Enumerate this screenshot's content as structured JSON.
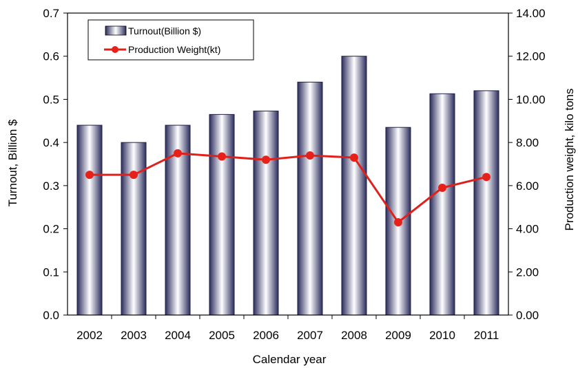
{
  "chart_data": {
    "type": "bar",
    "categories": [
      "2002",
      "2003",
      "2004",
      "2005",
      "2006",
      "2007",
      "2008",
      "2009",
      "2010",
      "2011"
    ],
    "series": [
      {
        "name": "Turnout(Billion $)",
        "type": "bar",
        "axis": "left",
        "values": [
          0.44,
          0.4,
          0.44,
          0.465,
          0.473,
          0.54,
          0.6,
          0.435,
          0.513,
          0.52
        ]
      },
      {
        "name": "Production Weight(kt)",
        "type": "line",
        "axis": "right",
        "values": [
          6.5,
          6.5,
          7.5,
          7.35,
          7.2,
          7.4,
          7.3,
          4.3,
          5.9,
          6.4
        ]
      }
    ],
    "xlabel": "Calendar year",
    "ylabel": "Turnout, Billion $",
    "y2label": "Production weight, kilo tons",
    "ylim": [
      0,
      0.7
    ],
    "y2lim": [
      0,
      14
    ],
    "yticks": [
      "0.0",
      "0.1",
      "0.2",
      "0.3",
      "0.4",
      "0.5",
      "0.6",
      "0.7"
    ],
    "y2ticks": [
      "0.00",
      "2.00",
      "4.00",
      "6.00",
      "8.00",
      "10.00",
      "12.00",
      "14.00"
    ],
    "grid": false,
    "legend_position": "top-left"
  },
  "colors": {
    "bar_dark": "#2c2d5e",
    "bar_light": "#ffffff",
    "line": "#e0201b",
    "marker": "#e8201a"
  }
}
